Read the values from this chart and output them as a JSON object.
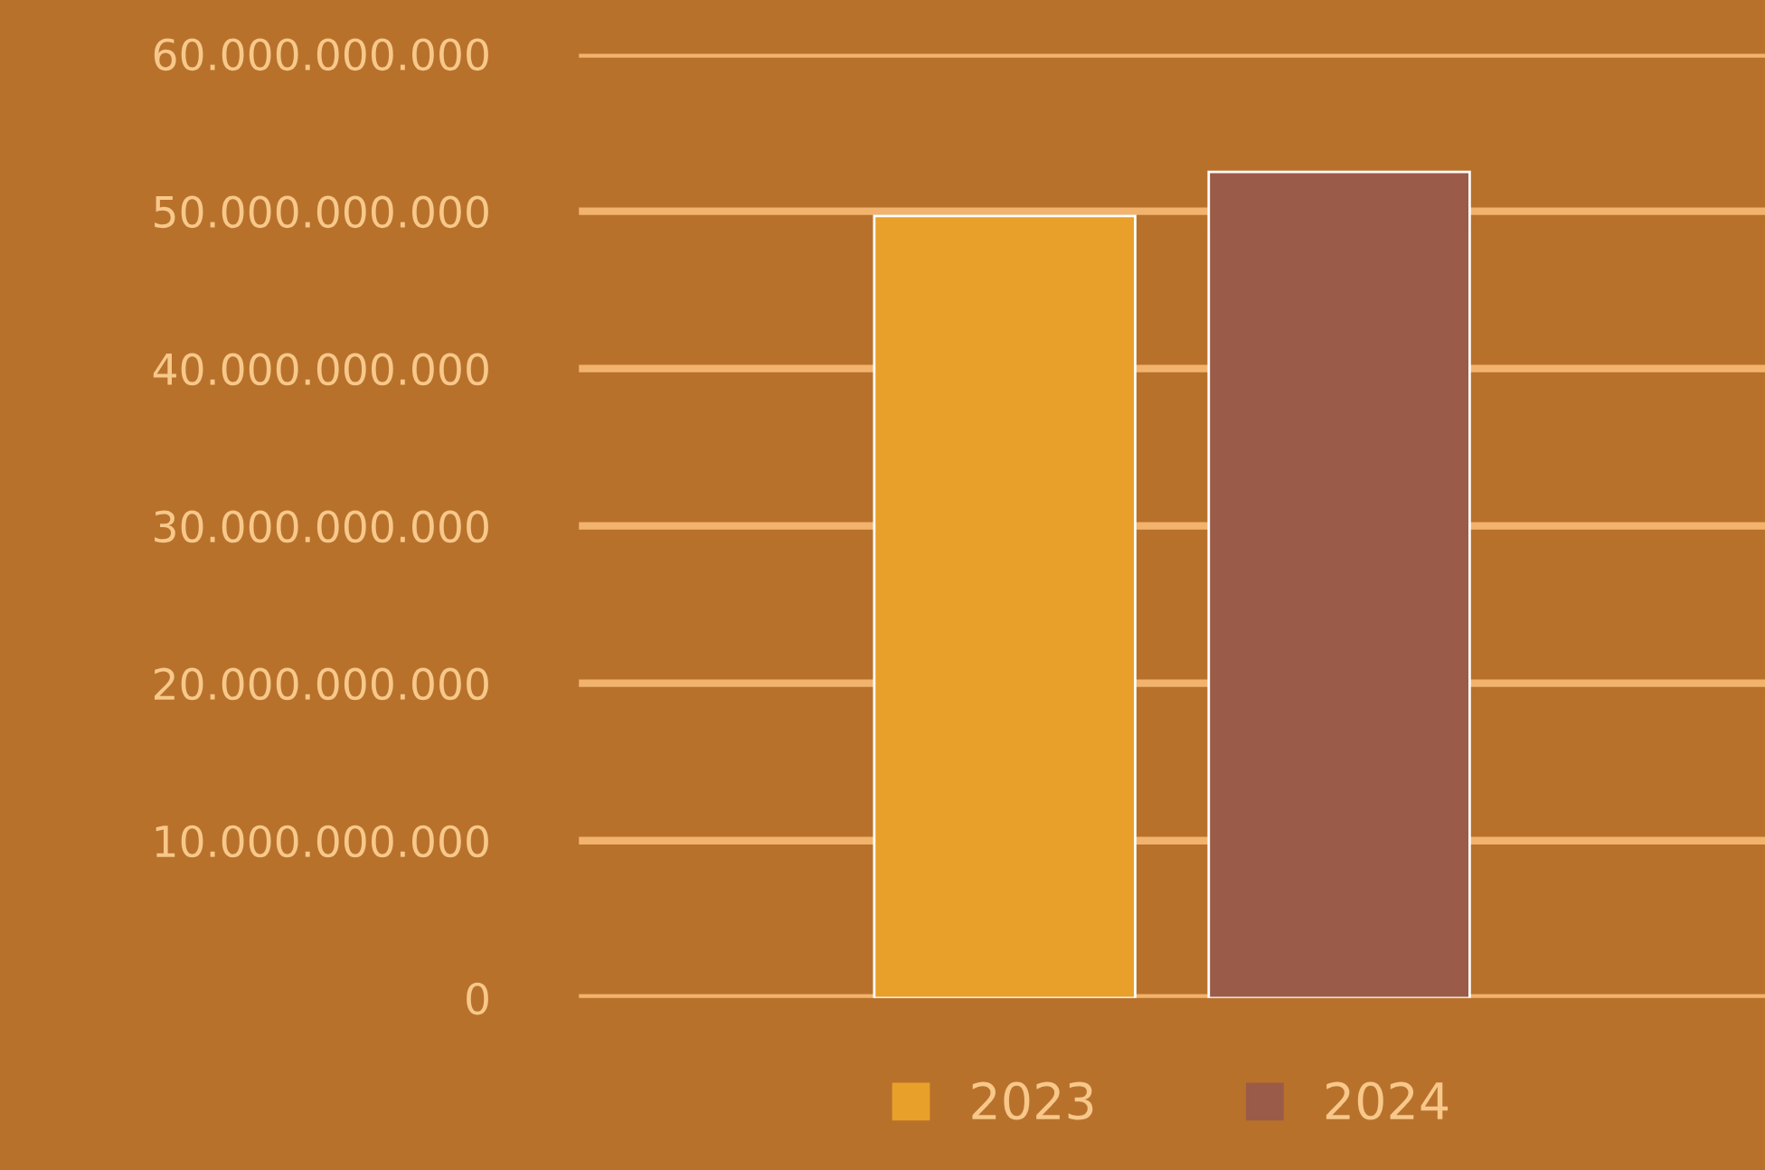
{
  "chart_data": {
    "type": "bar",
    "categories": [
      null
    ],
    "series": [
      {
        "name": "2023",
        "color": "#e9a02b",
        "values": [
          49700000000
        ]
      },
      {
        "name": "2024",
        "color": "#9b5b49",
        "values": [
          52500000000
        ]
      }
    ],
    "ylim": [
      0,
      60000000000
    ],
    "yticks": [
      {
        "value": 0,
        "label": "0"
      },
      {
        "value": 10000000000,
        "label": "10.000.000.000"
      },
      {
        "value": 20000000000,
        "label": "20.000.000.000"
      },
      {
        "value": 30000000000,
        "label": "30.000.000.000"
      },
      {
        "value": 40000000000,
        "label": "40.000.000.000"
      },
      {
        "value": 50000000000,
        "label": "50.000.000.000"
      },
      {
        "value": 60000000000,
        "label": "60.000.000.000"
      }
    ],
    "grid": "y",
    "legend": "bottom",
    "tick_labels": "y"
  }
}
